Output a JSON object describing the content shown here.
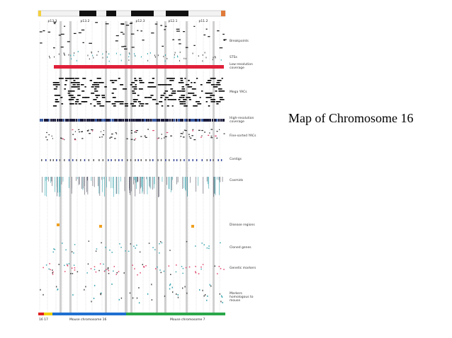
{
  "title": "Map of Chromosome 16",
  "band_labels": [
    "p13.3",
    "p13.2",
    "p12.3",
    "p12.1",
    "p11.2"
  ],
  "track_labels": [
    "Breakpoints",
    "STSs",
    "Low-resolution coverage",
    "Mega YACs",
    "High-resolution coverage",
    "Fine-sorted YACs",
    "Contigs",
    "Cosmids",
    "Disease regions",
    "Cloned genes",
    "Genetic markers",
    "Markers homologous to mouse"
  ],
  "bottom_labels": [
    "16 17",
    "Mouse chromosome 16",
    "Mouse chromosome 7"
  ],
  "colors": {
    "ideogram_dark": "#111111",
    "ideogram_light": "#f2f2f2",
    "ideogram_left_cap": "#f4d03f",
    "ideogram_right_cap": "#e07b39",
    "low_res_bar": "#e0203a",
    "guide_gray": "#c8c8c8",
    "mouse_red": "#e02020",
    "mouse_yellow": "#f2d000",
    "mouse_blue": "#1f6fd0",
    "mouse_green": "#2aa84a",
    "sts_teal": "#3aa6b0",
    "disease_orange": "#f0a020",
    "marker_pink": "#e0406a"
  }
}
